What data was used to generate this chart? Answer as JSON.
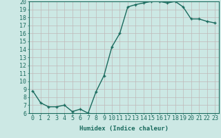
{
  "x": [
    0,
    1,
    2,
    3,
    4,
    5,
    6,
    7,
    8,
    9,
    10,
    11,
    12,
    13,
    14,
    15,
    16,
    17,
    18,
    19,
    20,
    21,
    22,
    23
  ],
  "y": [
    8.8,
    7.3,
    6.8,
    6.8,
    7.0,
    6.2,
    6.5,
    6.0,
    8.7,
    10.7,
    14.3,
    16.0,
    19.3,
    19.6,
    19.8,
    20.0,
    20.0,
    19.8,
    20.0,
    19.3,
    17.8,
    17.8,
    17.5,
    17.3
  ],
  "line_color": "#1a6b5e",
  "marker": "+",
  "marker_size": 3.5,
  "marker_lw": 1.0,
  "bg_color": "#cce8e4",
  "grid_color": "#c0b8b8",
  "xlabel": "Humidex (Indice chaleur)",
  "ylim": [
    6,
    20
  ],
  "xlim": [
    -0.5,
    23.5
  ],
  "yticks": [
    6,
    7,
    8,
    9,
    10,
    11,
    12,
    13,
    14,
    15,
    16,
    17,
    18,
    19,
    20
  ],
  "xticks": [
    0,
    1,
    2,
    3,
    4,
    5,
    6,
    7,
    8,
    9,
    10,
    11,
    12,
    13,
    14,
    15,
    16,
    17,
    18,
    19,
    20,
    21,
    22,
    23
  ],
  "xtick_labels": [
    "0",
    "1",
    "2",
    "3",
    "4",
    "5",
    "6",
    "7",
    "8",
    "9",
    "10",
    "11",
    "12",
    "13",
    "14",
    "15",
    "16",
    "17",
    "18",
    "19",
    "20",
    "21",
    "22",
    "23"
  ],
  "tick_color": "#1a6b5e",
  "label_fontsize": 6.5,
  "tick_fontsize": 6.0,
  "linewidth": 1.0
}
